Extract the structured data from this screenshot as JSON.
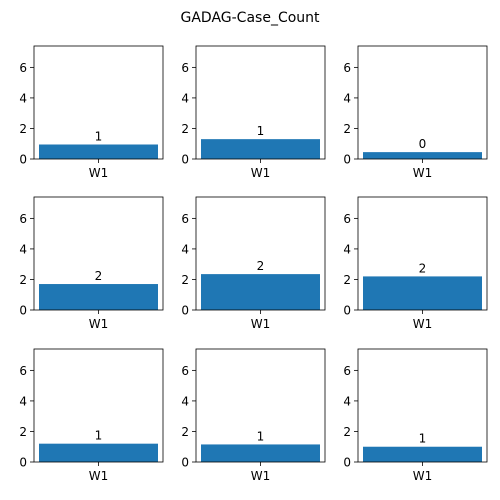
{
  "figure": {
    "title": "GADAG-Case_Count"
  },
  "chart_data": {
    "type": "bar",
    "title": "GADAG-Case_Count",
    "ylim": [
      0,
      7.4
    ],
    "yticks": [
      0,
      2,
      4,
      6
    ],
    "bar_color": "#1f77b4",
    "subplots": [
      {
        "categories": [
          "W1"
        ],
        "values": [
          0.95
        ],
        "labels": [
          "1"
        ]
      },
      {
        "categories": [
          "W1"
        ],
        "values": [
          1.3
        ],
        "labels": [
          "1"
        ]
      },
      {
        "categories": [
          "W1"
        ],
        "values": [
          0.45
        ],
        "labels": [
          "0"
        ]
      },
      {
        "categories": [
          "W1"
        ],
        "values": [
          1.7
        ],
        "labels": [
          "2"
        ]
      },
      {
        "categories": [
          "W1"
        ],
        "values": [
          2.35
        ],
        "labels": [
          "2"
        ]
      },
      {
        "categories": [
          "W1"
        ],
        "values": [
          2.2
        ],
        "labels": [
          "2"
        ]
      },
      {
        "categories": [
          "W1"
        ],
        "values": [
          1.2
        ],
        "labels": [
          "1"
        ]
      },
      {
        "categories": [
          "W1"
        ],
        "values": [
          1.15
        ],
        "labels": [
          "1"
        ]
      },
      {
        "categories": [
          "W1"
        ],
        "values": [
          1.0
        ],
        "labels": [
          "1"
        ]
      }
    ]
  }
}
